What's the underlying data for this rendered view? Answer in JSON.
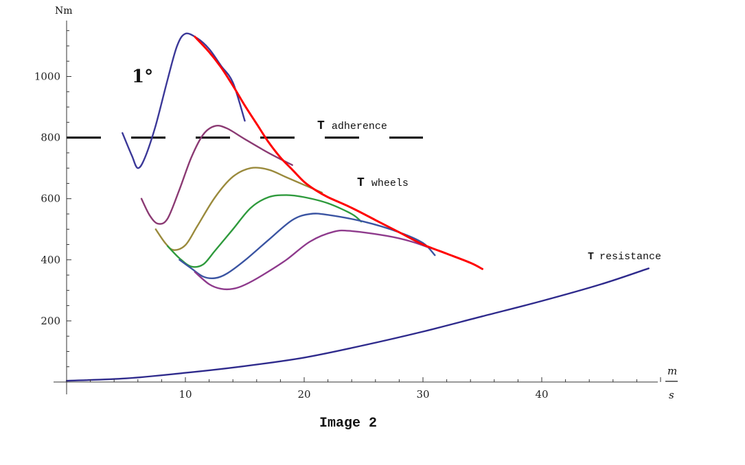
{
  "chart_data": {
    "type": "line",
    "title": "",
    "ylabel": "Nm",
    "xlabel_numerator": "m",
    "xlabel_denominator": "s",
    "caption": "Image 2",
    "xlim": [
      0,
      50
    ],
    "ylim": [
      0,
      1180
    ],
    "x_ticks": [
      10,
      20,
      30,
      40
    ],
    "y_ticks": [
      200,
      400,
      600,
      800,
      1000
    ],
    "grid": false,
    "annotations": {
      "gear_label": "1°",
      "adherence_bold": "T",
      "adherence_text": "adherence",
      "wheels_bold": "T",
      "wheels_text": "wheels",
      "resistance_bold": "T",
      "resistance_text": "resistance"
    },
    "colors": {
      "axis": "#333333",
      "envelope": "#ff0000",
      "resistance": "#2e2a8c",
      "adherence": "#000000"
    },
    "series": [
      {
        "role": "gear-1",
        "color": "#3b3898",
        "points": [
          [
            4.7,
            815
          ],
          [
            5.5,
            740
          ],
          [
            6,
            700
          ],
          [
            6.6,
            735
          ],
          [
            7.5,
            840
          ],
          [
            8.5,
            990
          ],
          [
            9.3,
            1100
          ],
          [
            10,
            1140
          ],
          [
            11,
            1125
          ],
          [
            12,
            1090
          ],
          [
            13,
            1035
          ],
          [
            14,
            980
          ],
          [
            15,
            855
          ]
        ]
      },
      {
        "role": "gear-2",
        "color": "#8b3a73",
        "points": [
          [
            6.3,
            600
          ],
          [
            7,
            545
          ],
          [
            7.7,
            518
          ],
          [
            8.5,
            535
          ],
          [
            9.5,
            630
          ],
          [
            10.5,
            735
          ],
          [
            11.5,
            810
          ],
          [
            12.5,
            838
          ],
          [
            13.5,
            830
          ],
          [
            15,
            795
          ],
          [
            17,
            750
          ],
          [
            19,
            710
          ]
        ]
      },
      {
        "role": "gear-3",
        "color": "#9a8a3c",
        "points": [
          [
            7.5,
            500
          ],
          [
            8.3,
            455
          ],
          [
            9,
            432
          ],
          [
            10,
            448
          ],
          [
            11,
            510
          ],
          [
            12.5,
            605
          ],
          [
            14,
            672
          ],
          [
            15.5,
            700
          ],
          [
            17,
            695
          ],
          [
            18.5,
            670
          ],
          [
            20,
            645
          ],
          [
            21.5,
            620
          ]
        ]
      },
      {
        "role": "gear-4",
        "color": "#2e9a3c",
        "points": [
          [
            8.5,
            445
          ],
          [
            9.5,
            405
          ],
          [
            10.5,
            378
          ],
          [
            11.5,
            385
          ],
          [
            12.5,
            430
          ],
          [
            14,
            500
          ],
          [
            15.5,
            570
          ],
          [
            17,
            605
          ],
          [
            18.5,
            612
          ],
          [
            20,
            605
          ],
          [
            22,
            585
          ],
          [
            24,
            550
          ],
          [
            24.8,
            525
          ]
        ]
      },
      {
        "role": "gear-5",
        "color": "#3a54a2",
        "points": [
          [
            9.5,
            400
          ],
          [
            10.5,
            372
          ],
          [
            11.5,
            345
          ],
          [
            12.5,
            340
          ],
          [
            13.5,
            355
          ],
          [
            15,
            398
          ],
          [
            17,
            465
          ],
          [
            19,
            530
          ],
          [
            20.5,
            550
          ],
          [
            22,
            547
          ],
          [
            25,
            525
          ],
          [
            28,
            490
          ],
          [
            30,
            455
          ],
          [
            31,
            415
          ]
        ]
      },
      {
        "role": "gear-6",
        "color": "#8e3a8c",
        "points": [
          [
            10.8,
            360
          ],
          [
            12,
            320
          ],
          [
            13,
            305
          ],
          [
            14,
            305
          ],
          [
            15,
            318
          ],
          [
            16.5,
            350
          ],
          [
            18.5,
            400
          ],
          [
            20.5,
            460
          ],
          [
            22.5,
            492
          ],
          [
            24,
            494
          ],
          [
            27,
            478
          ],
          [
            29,
            460
          ],
          [
            30.5,
            440
          ]
        ]
      },
      {
        "role": "envelope",
        "color": "#ff0000",
        "points": [
          [
            10.8,
            1130
          ],
          [
            12,
            1080
          ],
          [
            13,
            1030
          ],
          [
            14,
            970
          ],
          [
            15,
            905
          ],
          [
            16,
            845
          ],
          [
            17,
            785
          ],
          [
            18,
            735
          ],
          [
            19,
            695
          ],
          [
            20,
            655
          ],
          [
            21,
            627
          ],
          [
            22,
            605
          ],
          [
            24,
            570
          ],
          [
            26,
            530
          ],
          [
            28,
            490
          ],
          [
            30,
            450
          ],
          [
            32,
            420
          ],
          [
            34,
            390
          ],
          [
            35,
            370
          ]
        ]
      },
      {
        "role": "resistance",
        "color": "#2e2a8c",
        "points": [
          [
            0,
            4
          ],
          [
            5,
            12
          ],
          [
            10,
            30
          ],
          [
            15,
            52
          ],
          [
            20,
            80
          ],
          [
            25,
            120
          ],
          [
            30,
            165
          ],
          [
            35,
            215
          ],
          [
            40,
            265
          ],
          [
            45,
            320
          ],
          [
            49,
            372
          ]
        ]
      }
    ],
    "adherence_line": {
      "y": 800,
      "x_range": [
        0,
        30
      ]
    }
  }
}
